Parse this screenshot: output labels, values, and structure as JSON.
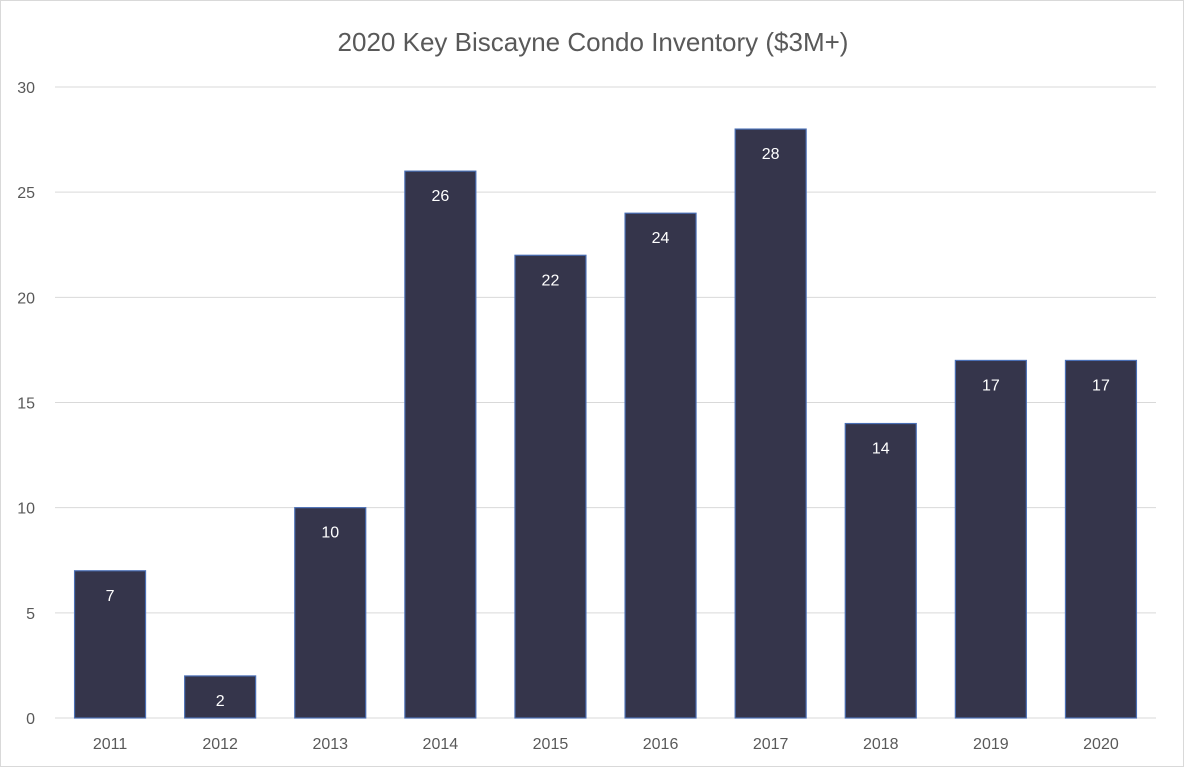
{
  "chart_data": {
    "type": "bar",
    "title": "2020 Key Biscayne Condo  Inventory ($3M+)",
    "categories": [
      "2011",
      "2012",
      "2013",
      "2014",
      "2015",
      "2016",
      "2017",
      "2018",
      "2019",
      "2020"
    ],
    "values": [
      7,
      2,
      10,
      26,
      22,
      24,
      28,
      14,
      17,
      17
    ],
    "xlabel": "",
    "ylabel": "",
    "ylim": [
      0,
      30
    ],
    "yticks": [
      0,
      5,
      10,
      15,
      20,
      25,
      30
    ],
    "grid": true,
    "data_labels": true,
    "legend": "none",
    "bar_color": "#35354b",
    "bar_outline_color": "#4a6fb5",
    "label_color": "#ffffff"
  }
}
